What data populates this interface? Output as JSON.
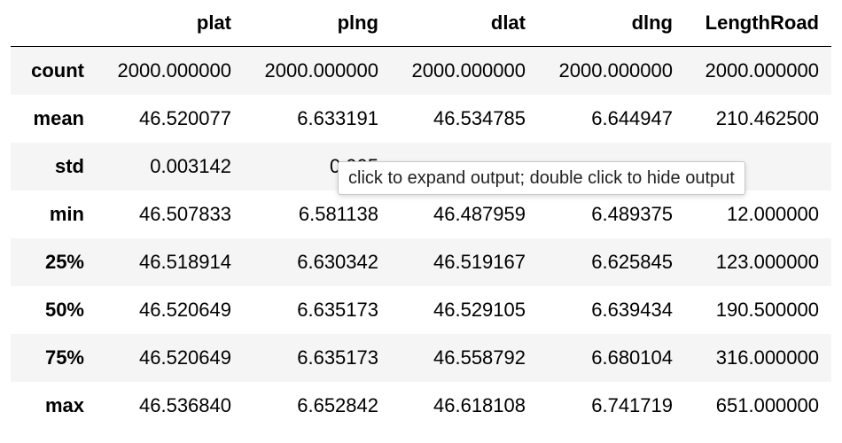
{
  "table": {
    "columns": [
      "plat",
      "plng",
      "dlat",
      "dlng",
      "LengthRoad"
    ],
    "rows": [
      {
        "label": "count",
        "values": [
          "2000.000000",
          "2000.000000",
          "2000.000000",
          "2000.000000",
          "2000.000000"
        ]
      },
      {
        "label": "mean",
        "values": [
          "46.520077",
          "6.633191",
          "46.534785",
          "6.644947",
          "210.462500"
        ]
      },
      {
        "label": "std",
        "values": [
          "0.003142",
          "0.005",
          "",
          "",
          ""
        ]
      },
      {
        "label": "min",
        "values": [
          "46.507833",
          "6.581138",
          "46.487959",
          "6.489375",
          "12.000000"
        ]
      },
      {
        "label": "25%",
        "values": [
          "46.518914",
          "6.630342",
          "46.519167",
          "6.625845",
          "123.000000"
        ]
      },
      {
        "label": "50%",
        "values": [
          "46.520649",
          "6.635173",
          "46.529105",
          "6.639434",
          "190.500000"
        ]
      },
      {
        "label": "75%",
        "values": [
          "46.520649",
          "6.635173",
          "46.558792",
          "6.680104",
          "316.000000"
        ]
      },
      {
        "label": "max",
        "values": [
          "46.536840",
          "6.652842",
          "46.618108",
          "6.741719",
          "651.000000"
        ]
      }
    ]
  },
  "tooltip": {
    "text": "click to expand output; double click to hide output"
  }
}
